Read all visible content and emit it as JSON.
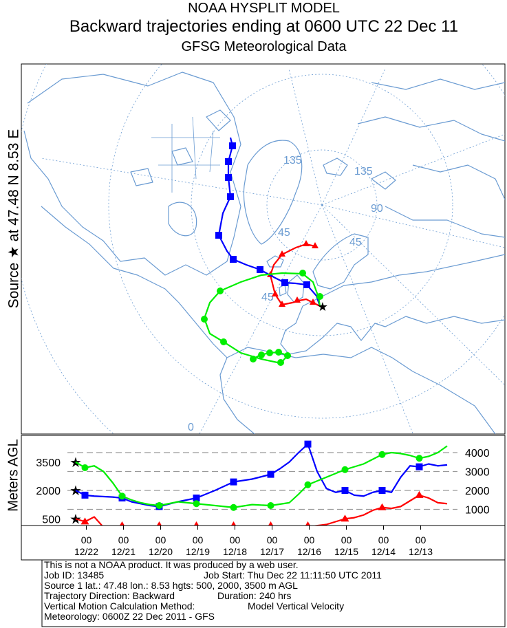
{
  "header": {
    "line1": "NOAA HYSPLIT MODEL",
    "line2": "Backward trajectories ending at 0600 UTC 22 Dec 11",
    "line3": "GFSG Meteorological Data"
  },
  "side_label": "Source ★ at  47.48 N    8.53 E",
  "map": {
    "projection_labels": [
      "135",
      "135",
      "90",
      "45",
      "45",
      "45",
      "0"
    ],
    "source_marker": "★"
  },
  "chart_data": {
    "type": "line",
    "ylabel": "Meters AGL",
    "left_tick_labels": [
      "3500",
      "2000",
      "500"
    ],
    "right_tick_labels": [
      "4000",
      "3000",
      "2000",
      "1000"
    ],
    "x_hour_labels": [
      "00",
      "00",
      "00",
      "00",
      "00",
      "00",
      "00",
      "00",
      "00",
      "00"
    ],
    "x_date_labels": [
      "12/22",
      "12/21",
      "12/20",
      "12/19",
      "12/18",
      "12/17",
      "12/16",
      "12/15",
      "12/14",
      "12/13"
    ],
    "x_days_before_end": [
      0.25,
      1.25,
      2.25,
      3.25,
      4.25,
      5.25,
      6.25,
      7.25,
      8.25,
      9.25
    ],
    "ylim": [
      0,
      4600
    ],
    "series": [
      {
        "name": "500",
        "color": "#ff0000",
        "marker": "triangle",
        "t": [
          0,
          0.25,
          0.5,
          0.75,
          1,
          1.25,
          1.75,
          2.25,
          2.75,
          3.25,
          3.75,
          4.25,
          4.75,
          5.25,
          5.75,
          6.25,
          6.75,
          7.25,
          7.5,
          7.75,
          8,
          8.25,
          8.5,
          8.75,
          9,
          9.25,
          9.5,
          9.75,
          10
        ],
        "v": [
          500,
          350,
          600,
          50,
          20,
          0,
          0,
          0,
          0,
          0,
          0,
          0,
          0,
          0,
          20,
          80,
          200,
          500,
          560,
          700,
          950,
          1100,
          1050,
          1150,
          1450,
          1750,
          1600,
          1350,
          1300
        ]
      },
      {
        "name": "2000",
        "color": "#0000ff",
        "marker": "square",
        "t": [
          0,
          0.25,
          0.5,
          1,
          1.25,
          1.5,
          2,
          2.25,
          2.75,
          3.25,
          3.75,
          4.25,
          4.75,
          5.25,
          5.5,
          5.75,
          6,
          6.25,
          6.5,
          6.75,
          7,
          7.25,
          7.5,
          7.75,
          8,
          8.25,
          8.5,
          8.75,
          9,
          9.25,
          9.5,
          9.75,
          10
        ],
        "v": [
          2000,
          1750,
          1700,
          1650,
          1600,
          1400,
          1200,
          1150,
          1400,
          1600,
          2000,
          2450,
          2600,
          2850,
          3150,
          3500,
          4000,
          4450,
          3000,
          2100,
          1900,
          2000,
          1750,
          1700,
          1900,
          2000,
          1900,
          2700,
          3300,
          3250,
          3400,
          3300,
          3350
        ]
      },
      {
        "name": "3500",
        "color": "#00ee00",
        "marker": "circle",
        "t": [
          0,
          0.25,
          0.5,
          0.75,
          1,
          1.25,
          1.5,
          1.75,
          2,
          2.25,
          2.75,
          3.25,
          3.75,
          4.25,
          4.75,
          5.25,
          5.75,
          6,
          6.25,
          6.75,
          7.25,
          7.75,
          8.25,
          8.5,
          8.75,
          9,
          9.25,
          9.5,
          9.75,
          10
        ],
        "v": [
          3500,
          3200,
          3300,
          3000,
          2400,
          1700,
          1500,
          1350,
          1250,
          1200,
          1400,
          1300,
          1200,
          1100,
          1250,
          1200,
          1350,
          1800,
          2300,
          2700,
          3100,
          3400,
          3900,
          4000,
          3950,
          3850,
          3700,
          3800,
          4000,
          4350
        ]
      }
    ]
  },
  "info": {
    "l1": "This is not a NOAA product. It was produced by a web user.",
    "l2a": "Job ID: 13485",
    "l2b": "Job Start: Thu Dec 22 11:11:50 UTC 2011",
    "l3": "Source 1 lat.: 47.48  lon.: 8.53  hgts: 500, 2000, 3500 m AGL",
    "l4a": "Trajectory Direction: Backward",
    "l4b": "Duration: 240 hrs",
    "l5a": "Vertical Motion Calculation Method:",
    "l5b": "Model Vertical Velocity",
    "l6": "Meteorology: 0600Z 22 Dec 2011 - GFS"
  },
  "colors": {
    "land": "#6a9bd2",
    "graticule": "#6a9bd2",
    "red": "#ff0000",
    "blue": "#0000ff",
    "green": "#00ee00"
  }
}
